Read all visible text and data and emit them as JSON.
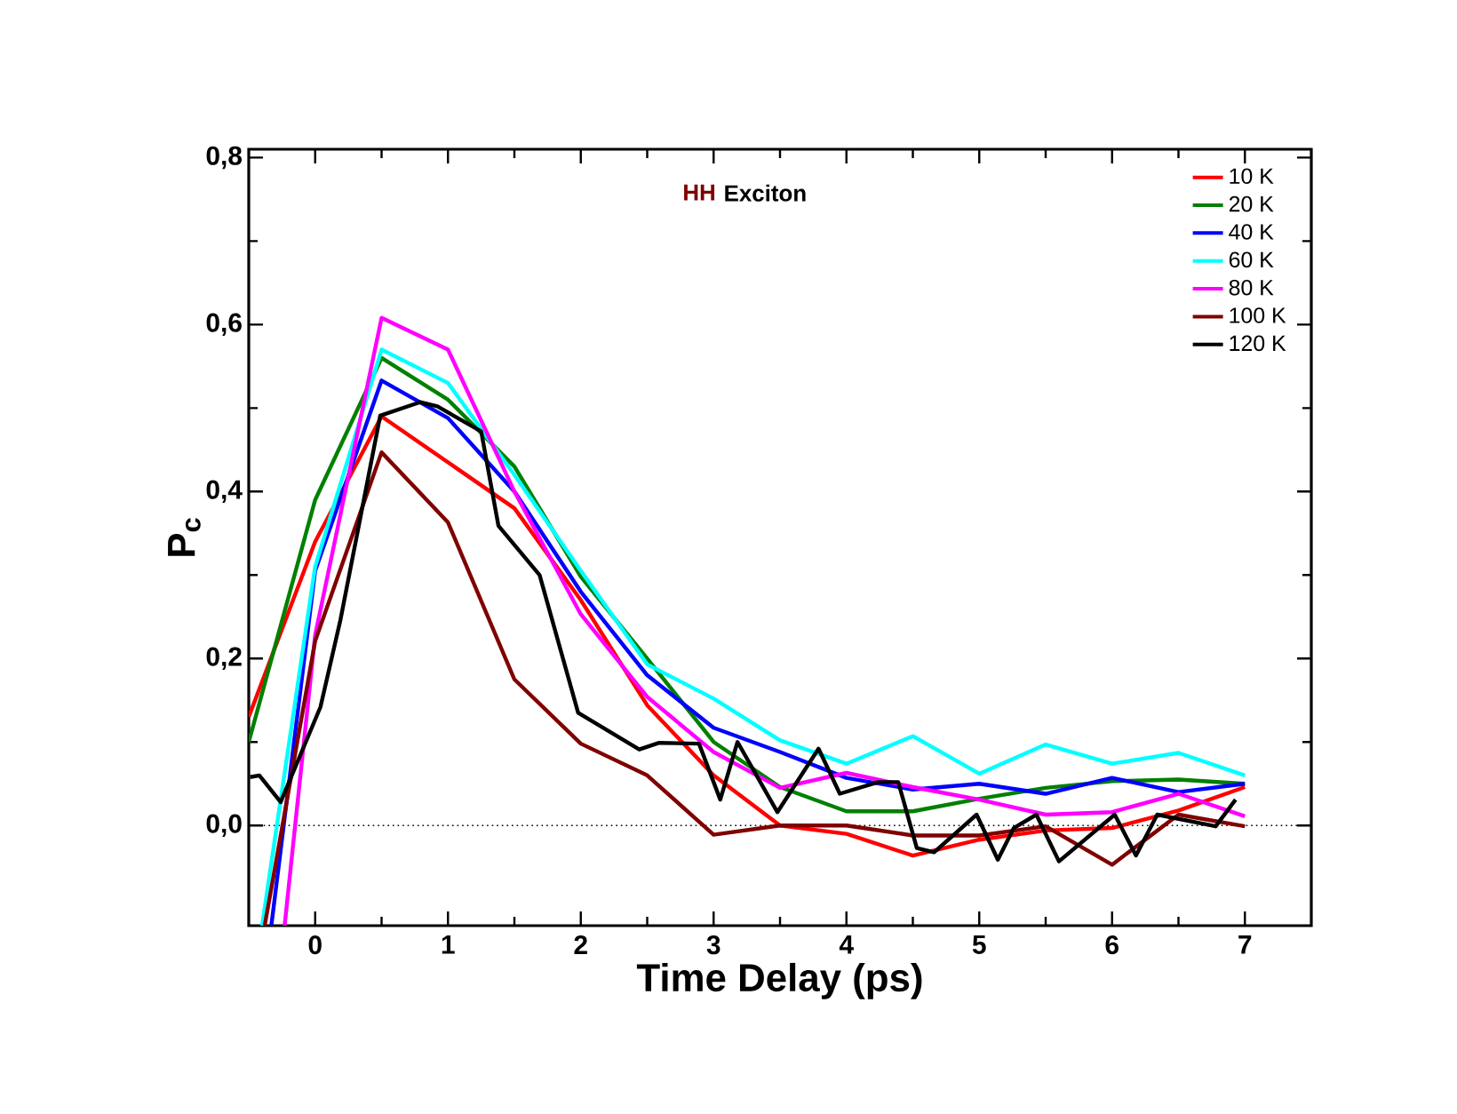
{
  "chart_data": {
    "type": "line",
    "xlabel": "Time Delay (ps)",
    "ylabel": "P$_{c}$",
    "annotations": [
      "HH",
      "Exciton"
    ],
    "xlim": [
      -0.5,
      7.5
    ],
    "ylim": [
      -0.12,
      0.81
    ],
    "xticks": [
      0,
      1,
      2,
      3,
      4,
      5,
      6,
      7
    ],
    "yticks": [
      {
        "value": 0,
        "label": "0,0"
      },
      {
        "value": 0.2,
        "label": "0,2"
      },
      {
        "value": 0.4,
        "label": "0,4"
      },
      {
        "value": 0.6,
        "label": "0,6"
      },
      {
        "value": 0.8,
        "label": "0,8"
      }
    ],
    "legend": "top right",
    "ref_lines": [
      {
        "axis": "y",
        "value": 0,
        "color": "#000000",
        "line_style": "dotted"
      }
    ],
    "series": [
      {
        "name": "10 K",
        "color": "#ff0000",
        "x": [
          -0.5,
          0,
          0.5,
          1,
          1.5,
          2,
          2.5,
          3,
          3.5,
          4,
          4.5,
          5,
          5.5,
          6,
          6.5,
          7
        ],
        "values": [
          0.13,
          0.34,
          0.49,
          0.435,
          0.38,
          0.27,
          0.144,
          0.06,
          0.0,
          -0.01,
          -0.036,
          -0.017,
          -0.006,
          -0.003,
          0.018,
          0.046
        ]
      },
      {
        "name": "20 K",
        "color": "#008000",
        "x": [
          -0.5,
          0,
          0.5,
          1,
          1.5,
          2,
          2.5,
          3,
          3.5,
          4,
          4.5,
          5,
          5.5,
          6,
          6.5,
          7
        ],
        "values": [
          0.1,
          0.39,
          0.56,
          0.51,
          0.43,
          0.298,
          0.2,
          0.1,
          0.046,
          0.017,
          0.017,
          0.032,
          0.045,
          0.053,
          0.055,
          0.05
        ]
      },
      {
        "name": "40 K",
        "color": "#0000ff",
        "x": [
          -0.33,
          0,
          0.5,
          1,
          1.5,
          2,
          2.5,
          3,
          3.5,
          4,
          4.5,
          5,
          5.5,
          6,
          6.5,
          7
        ],
        "values": [
          -0.12,
          0.305,
          0.533,
          0.488,
          0.4,
          0.28,
          0.18,
          0.117,
          0.088,
          0.057,
          0.043,
          0.05,
          0.038,
          0.057,
          0.04,
          0.05
        ]
      },
      {
        "name": "60 K",
        "color": "#00ffff",
        "x": [
          -0.4,
          0,
          0.5,
          1,
          1.5,
          2,
          2.5,
          3,
          3.5,
          4,
          4.5,
          5,
          5.5,
          6,
          6.5,
          7
        ],
        "values": [
          -0.12,
          0.31,
          0.57,
          0.53,
          0.42,
          0.305,
          0.193,
          0.152,
          0.102,
          0.074,
          0.107,
          0.062,
          0.097,
          0.074,
          0.087,
          0.06
        ]
      },
      {
        "name": "80 K",
        "color": "#ff00ff",
        "x": [
          -0.23,
          0,
          0.5,
          1,
          1.5,
          2,
          2.5,
          3,
          3.5,
          4,
          4.5,
          5,
          5.5,
          6,
          6.5,
          7
        ],
        "values": [
          -0.12,
          0.228,
          0.608,
          0.57,
          0.4,
          0.253,
          0.154,
          0.088,
          0.045,
          0.063,
          0.046,
          0.031,
          0.013,
          0.016,
          0.038,
          0.011
        ]
      },
      {
        "name": "100 K",
        "color": "#800000",
        "x": [
          -0.38,
          0,
          0.5,
          1,
          1.5,
          2,
          2.5,
          3,
          3.5,
          4,
          4.5,
          5,
          5.5,
          6,
          6.5,
          7
        ],
        "values": [
          -0.12,
          0.221,
          0.447,
          0.363,
          0.175,
          0.098,
          0.06,
          -0.011,
          0,
          0,
          -0.012,
          -0.012,
          -0.001,
          -0.047,
          0.013,
          -0.001
        ]
      },
      {
        "name": "120 K",
        "color": "#000000",
        "x": [
          -0.49,
          -0.42,
          -0.26,
          0.04,
          0.19,
          0.49,
          0.79,
          0.92,
          1.25,
          1.38,
          1.69,
          1.98,
          2.44,
          2.59,
          2.89,
          3.05,
          3.18,
          3.48,
          3.79,
          3.95,
          4.24,
          4.39,
          4.53,
          4.66,
          4.98,
          5.14,
          5.26,
          5.43,
          5.6,
          6.02,
          6.18,
          6.34,
          6.78,
          6.93
        ],
        "values": [
          0.058,
          0.06,
          0.028,
          0.142,
          0.246,
          0.491,
          0.507,
          0.502,
          0.472,
          0.359,
          0.3,
          0.135,
          0.091,
          0.099,
          0.098,
          0.031,
          0.1,
          0.016,
          0.092,
          0.038,
          0.052,
          0.052,
          -0.027,
          -0.032,
          0.013,
          -0.041,
          -0.003,
          0.013,
          -0.043,
          0.013,
          -0.036,
          0.013,
          -0.001,
          0.031
        ]
      }
    ]
  }
}
